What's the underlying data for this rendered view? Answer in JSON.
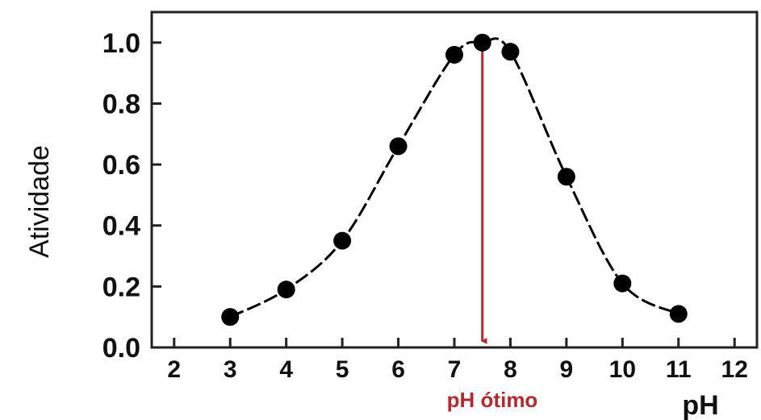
{
  "chart_data": {
    "type": "scatter",
    "xlabel": "pH",
    "ylabel": "Atividade",
    "xlim": [
      1.6,
      12.4
    ],
    "ylim": [
      0.0,
      1.1
    ],
    "x_ticks": [
      "2",
      "3",
      "4",
      "5",
      "6",
      "7",
      "8",
      "9",
      "10",
      "11",
      "12"
    ],
    "y_ticks": [
      "0.0",
      "0.2",
      "0.4",
      "0.6",
      "0.8",
      "1.0"
    ],
    "series": [
      {
        "x": [
          3,
          4,
          5,
          6,
          7,
          7.5,
          8,
          9,
          10,
          11
        ],
        "y": [
          0.1,
          0.19,
          0.35,
          0.66,
          0.96,
          1.0,
          0.97,
          0.56,
          0.21,
          0.11
        ]
      }
    ],
    "annotation": {
      "label": "pH ótimo",
      "x": 7.5
    },
    "colors": {
      "points": "#000000",
      "curve": "#000000",
      "annotation": "#b5292e"
    },
    "grid": false
  }
}
